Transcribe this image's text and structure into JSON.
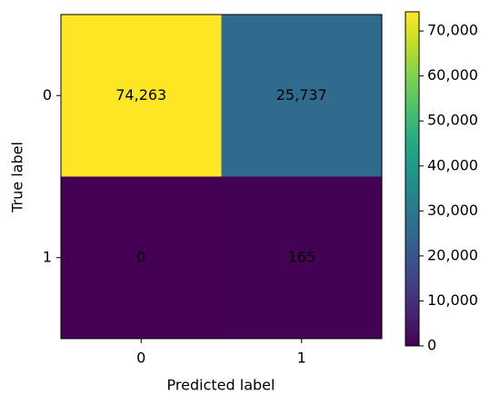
{
  "chart_data": {
    "type": "heatmap",
    "x_label": "Predicted label",
    "y_label": "True label",
    "x_categories": [
      "0",
      "1"
    ],
    "y_categories": [
      "0",
      "1"
    ],
    "values": [
      [
        74263,
        25737
      ],
      [
        0,
        165
      ]
    ],
    "value_labels": [
      [
        "74,263",
        "25,737"
      ],
      [
        "0",
        "165"
      ]
    ],
    "colormap": "viridis",
    "clim": [
      0,
      74263
    ],
    "cticks": [
      0,
      {
        "value": 10000,
        "label": "10,000"
      },
      {
        "value": 20000,
        "label": "20,000"
      },
      {
        "value": 30000,
        "label": "30,000"
      },
      {
        "value": 40000,
        "label": "40,000"
      },
      {
        "value": 50000,
        "label": "50,000"
      },
      {
        "value": 60000,
        "label": "60,000"
      },
      {
        "value": 70000,
        "label": "70,000"
      }
    ]
  }
}
